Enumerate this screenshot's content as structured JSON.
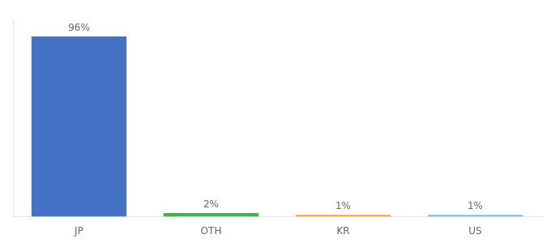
{
  "chart_data": {
    "type": "bar",
    "categories": [
      "JP",
      "OTH",
      "KR",
      "US"
    ],
    "values": [
      96,
      2,
      1,
      1
    ],
    "value_labels": [
      "96%",
      "2%",
      "1%",
      "1%"
    ],
    "colors": [
      "#4472c4",
      "#3db34a",
      "#e8a838",
      "#7bbded"
    ],
    "ylim": [
      0,
      105
    ],
    "tick_labels": "x",
    "grid": false,
    "data_labels": true
  }
}
